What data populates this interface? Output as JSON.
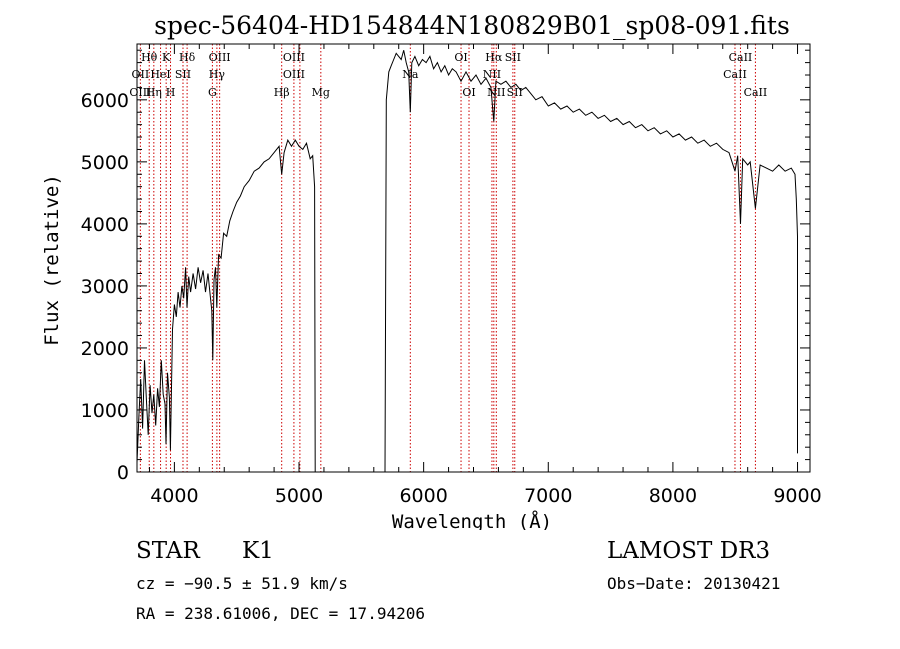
{
  "chart_data": {
    "type": "line",
    "title": "spec-56404-HD154844N180829B01_sp08-091.fits",
    "xlabel": "Wavelength (Å)",
    "ylabel": "Flux (relative)",
    "xlim": [
      3700,
      9100
    ],
    "ylim": [
      0,
      6900
    ],
    "xticks": [
      4000,
      5000,
      6000,
      7000,
      8000,
      9000
    ],
    "yticks": [
      0,
      1000,
      2000,
      3000,
      4000,
      5000,
      6000
    ],
    "gap": [
      5130,
      5690
    ],
    "series": [
      {
        "points": [
          [
            3700,
            150
          ],
          [
            3715,
            900
          ],
          [
            3730,
            1500
          ],
          [
            3745,
            700
          ],
          [
            3760,
            1800
          ],
          [
            3775,
            1200
          ],
          [
            3790,
            600
          ],
          [
            3805,
            1400
          ],
          [
            3820,
            950
          ],
          [
            3835,
            1250
          ],
          [
            3850,
            750
          ],
          [
            3865,
            1350
          ],
          [
            3880,
            1050
          ],
          [
            3895,
            1800
          ],
          [
            3910,
            1250
          ],
          [
            3925,
            1100
          ],
          [
            3933,
            450
          ],
          [
            3945,
            1600
          ],
          [
            3960,
            1200
          ],
          [
            3968,
            350
          ],
          [
            3985,
            2300
          ],
          [
            4000,
            2700
          ],
          [
            4015,
            2500
          ],
          [
            4030,
            2900
          ],
          [
            4045,
            2650
          ],
          [
            4060,
            3000
          ],
          [
            4075,
            2800
          ],
          [
            4090,
            3300
          ],
          [
            4101,
            2650
          ],
          [
            4115,
            3150
          ],
          [
            4130,
            2900
          ],
          [
            4150,
            3200
          ],
          [
            4170,
            2950
          ],
          [
            4190,
            3300
          ],
          [
            4210,
            3050
          ],
          [
            4230,
            3250
          ],
          [
            4250,
            2900
          ],
          [
            4270,
            3200
          ],
          [
            4290,
            2800
          ],
          [
            4300,
            2600
          ],
          [
            4308,
            1800
          ],
          [
            4318,
            3100
          ],
          [
            4330,
            3300
          ],
          [
            4340,
            2650
          ],
          [
            4355,
            3500
          ],
          [
            4375,
            3450
          ],
          [
            4395,
            3850
          ],
          [
            4420,
            3800
          ],
          [
            4445,
            4050
          ],
          [
            4470,
            4200
          ],
          [
            4500,
            4350
          ],
          [
            4530,
            4450
          ],
          [
            4560,
            4600
          ],
          [
            4600,
            4700
          ],
          [
            4640,
            4850
          ],
          [
            4680,
            4900
          ],
          [
            4720,
            5000
          ],
          [
            4760,
            5050
          ],
          [
            4800,
            5150
          ],
          [
            4840,
            5250
          ],
          [
            4861,
            4800
          ],
          [
            4880,
            5150
          ],
          [
            4910,
            5350
          ],
          [
            4940,
            5250
          ],
          [
            4970,
            5350
          ],
          [
            5000,
            5250
          ],
          [
            5030,
            5200
          ],
          [
            5060,
            5300
          ],
          [
            5090,
            5050
          ],
          [
            5110,
            5100
          ],
          [
            5125,
            4600
          ],
          [
            5130,
            0
          ],
          [
            5690,
            0
          ],
          [
            5700,
            6000
          ],
          [
            5720,
            6450
          ],
          [
            5740,
            6550
          ],
          [
            5760,
            6650
          ],
          [
            5780,
            6750
          ],
          [
            5800,
            6700
          ],
          [
            5820,
            6650
          ],
          [
            5840,
            6800
          ],
          [
            5860,
            6600
          ],
          [
            5880,
            6450
          ],
          [
            5893,
            5800
          ],
          [
            5905,
            6600
          ],
          [
            5930,
            6700
          ],
          [
            5960,
            6550
          ],
          [
            5990,
            6650
          ],
          [
            6020,
            6600
          ],
          [
            6050,
            6700
          ],
          [
            6080,
            6500
          ],
          [
            6110,
            6600
          ],
          [
            6140,
            6450
          ],
          [
            6170,
            6550
          ],
          [
            6200,
            6400
          ],
          [
            6230,
            6500
          ],
          [
            6260,
            6450
          ],
          [
            6300,
            6300
          ],
          [
            6340,
            6450
          ],
          [
            6380,
            6300
          ],
          [
            6420,
            6400
          ],
          [
            6460,
            6250
          ],
          [
            6500,
            6350
          ],
          [
            6540,
            6200
          ],
          [
            6563,
            5650
          ],
          [
            6580,
            6300
          ],
          [
            6620,
            6250
          ],
          [
            6660,
            6300
          ],
          [
            6700,
            6200
          ],
          [
            6740,
            6250
          ],
          [
            6780,
            6150
          ],
          [
            6820,
            6200
          ],
          [
            6860,
            6100
          ],
          [
            6900,
            6000
          ],
          [
            6950,
            6050
          ],
          [
            7000,
            5900
          ],
          [
            7050,
            5950
          ],
          [
            7100,
            5850
          ],
          [
            7150,
            5900
          ],
          [
            7200,
            5800
          ],
          [
            7250,
            5850
          ],
          [
            7300,
            5750
          ],
          [
            7350,
            5800
          ],
          [
            7400,
            5700
          ],
          [
            7450,
            5750
          ],
          [
            7500,
            5650
          ],
          [
            7550,
            5700
          ],
          [
            7600,
            5600
          ],
          [
            7650,
            5650
          ],
          [
            7700,
            5550
          ],
          [
            7750,
            5600
          ],
          [
            7800,
            5500
          ],
          [
            7850,
            5550
          ],
          [
            7900,
            5450
          ],
          [
            7950,
            5500
          ],
          [
            8000,
            5400
          ],
          [
            8050,
            5450
          ],
          [
            8100,
            5350
          ],
          [
            8150,
            5400
          ],
          [
            8200,
            5300
          ],
          [
            8250,
            5350
          ],
          [
            8300,
            5250
          ],
          [
            8350,
            5300
          ],
          [
            8400,
            5200
          ],
          [
            8450,
            5150
          ],
          [
            8498,
            4850
          ],
          [
            8520,
            5100
          ],
          [
            8542,
            4000
          ],
          [
            8560,
            5050
          ],
          [
            8600,
            4950
          ],
          [
            8620,
            5000
          ],
          [
            8662,
            4250
          ],
          [
            8700,
            4950
          ],
          [
            8750,
            4900
          ],
          [
            8800,
            4850
          ],
          [
            8850,
            4950
          ],
          [
            8900,
            4850
          ],
          [
            8950,
            4900
          ],
          [
            8980,
            4800
          ],
          [
            8990,
            4400
          ],
          [
            9000,
            3800
          ],
          [
            9000,
            300
          ]
        ]
      }
    ],
    "line_labels": [
      {
        "text": "Hθ",
        "wl": 3798,
        "row": 0
      },
      {
        "text": "OII",
        "wl": 3727,
        "row": 1
      },
      {
        "text": "OIII",
        "wl": 3727,
        "row": 2
      },
      {
        "text": "K",
        "wl": 3934,
        "row": 0
      },
      {
        "text": "HeI",
        "wl": 3889,
        "row": 1
      },
      {
        "text": "Hη",
        "wl": 3835,
        "row": 2
      },
      {
        "text": "H",
        "wl": 3969,
        "row": 2
      },
      {
        "text": "Hδ",
        "wl": 4102,
        "row": 0
      },
      {
        "text": "SII",
        "wl": 4069,
        "row": 1
      },
      {
        "text": "OIII",
        "wl": 4363,
        "row": 0
      },
      {
        "text": "Hγ",
        "wl": 4341,
        "row": 1
      },
      {
        "text": "G",
        "wl": 4305,
        "row": 2
      },
      {
        "text": "Hβ",
        "wl": 4861,
        "row": 2
      },
      {
        "text": "OIII",
        "wl": 4959,
        "row": 0
      },
      {
        "text": "OIII",
        "wl": 4959,
        "row": 1
      },
      {
        "text": "Mg",
        "wl": 5175,
        "row": 2
      },
      {
        "text": "Na",
        "wl": 5893,
        "row": 1
      },
      {
        "text": "OI",
        "wl": 6300,
        "row": 0
      },
      {
        "text": "OI",
        "wl": 6364,
        "row": 2
      },
      {
        "text": "Hα",
        "wl": 6563,
        "row": 0
      },
      {
        "text": "SII",
        "wl": 6716,
        "row": 0
      },
      {
        "text": "NII",
        "wl": 6548,
        "row": 1
      },
      {
        "text": "NII",
        "wl": 6583,
        "row": 2
      },
      {
        "text": "SII",
        "wl": 6731,
        "row": 2
      },
      {
        "text": "CaII",
        "wl": 8542,
        "row": 0
      },
      {
        "text": "CaII",
        "wl": 8498,
        "row": 1
      },
      {
        "text": "CaII",
        "wl": 8662,
        "row": 2
      }
    ],
    "line_markers": [
      3727,
      3798,
      3835,
      3889,
      3934,
      3969,
      4069,
      4102,
      4305,
      4341,
      4363,
      4861,
      4959,
      5007,
      5175,
      5893,
      6300,
      6364,
      6548,
      6563,
      6583,
      6716,
      6731,
      8498,
      8542,
      8662
    ]
  },
  "info": {
    "class_label": "STAR",
    "subclass": "K1",
    "survey": "LAMOST DR3",
    "cz": "cz = −90.5 ± 51.9 km/s",
    "obs_date": "Obs−Date: 20130421",
    "coords": "RA = 238.61006, DEC =  17.94206"
  },
  "colors": {
    "spectrum": "#000000",
    "marker": "#cc0000"
  }
}
